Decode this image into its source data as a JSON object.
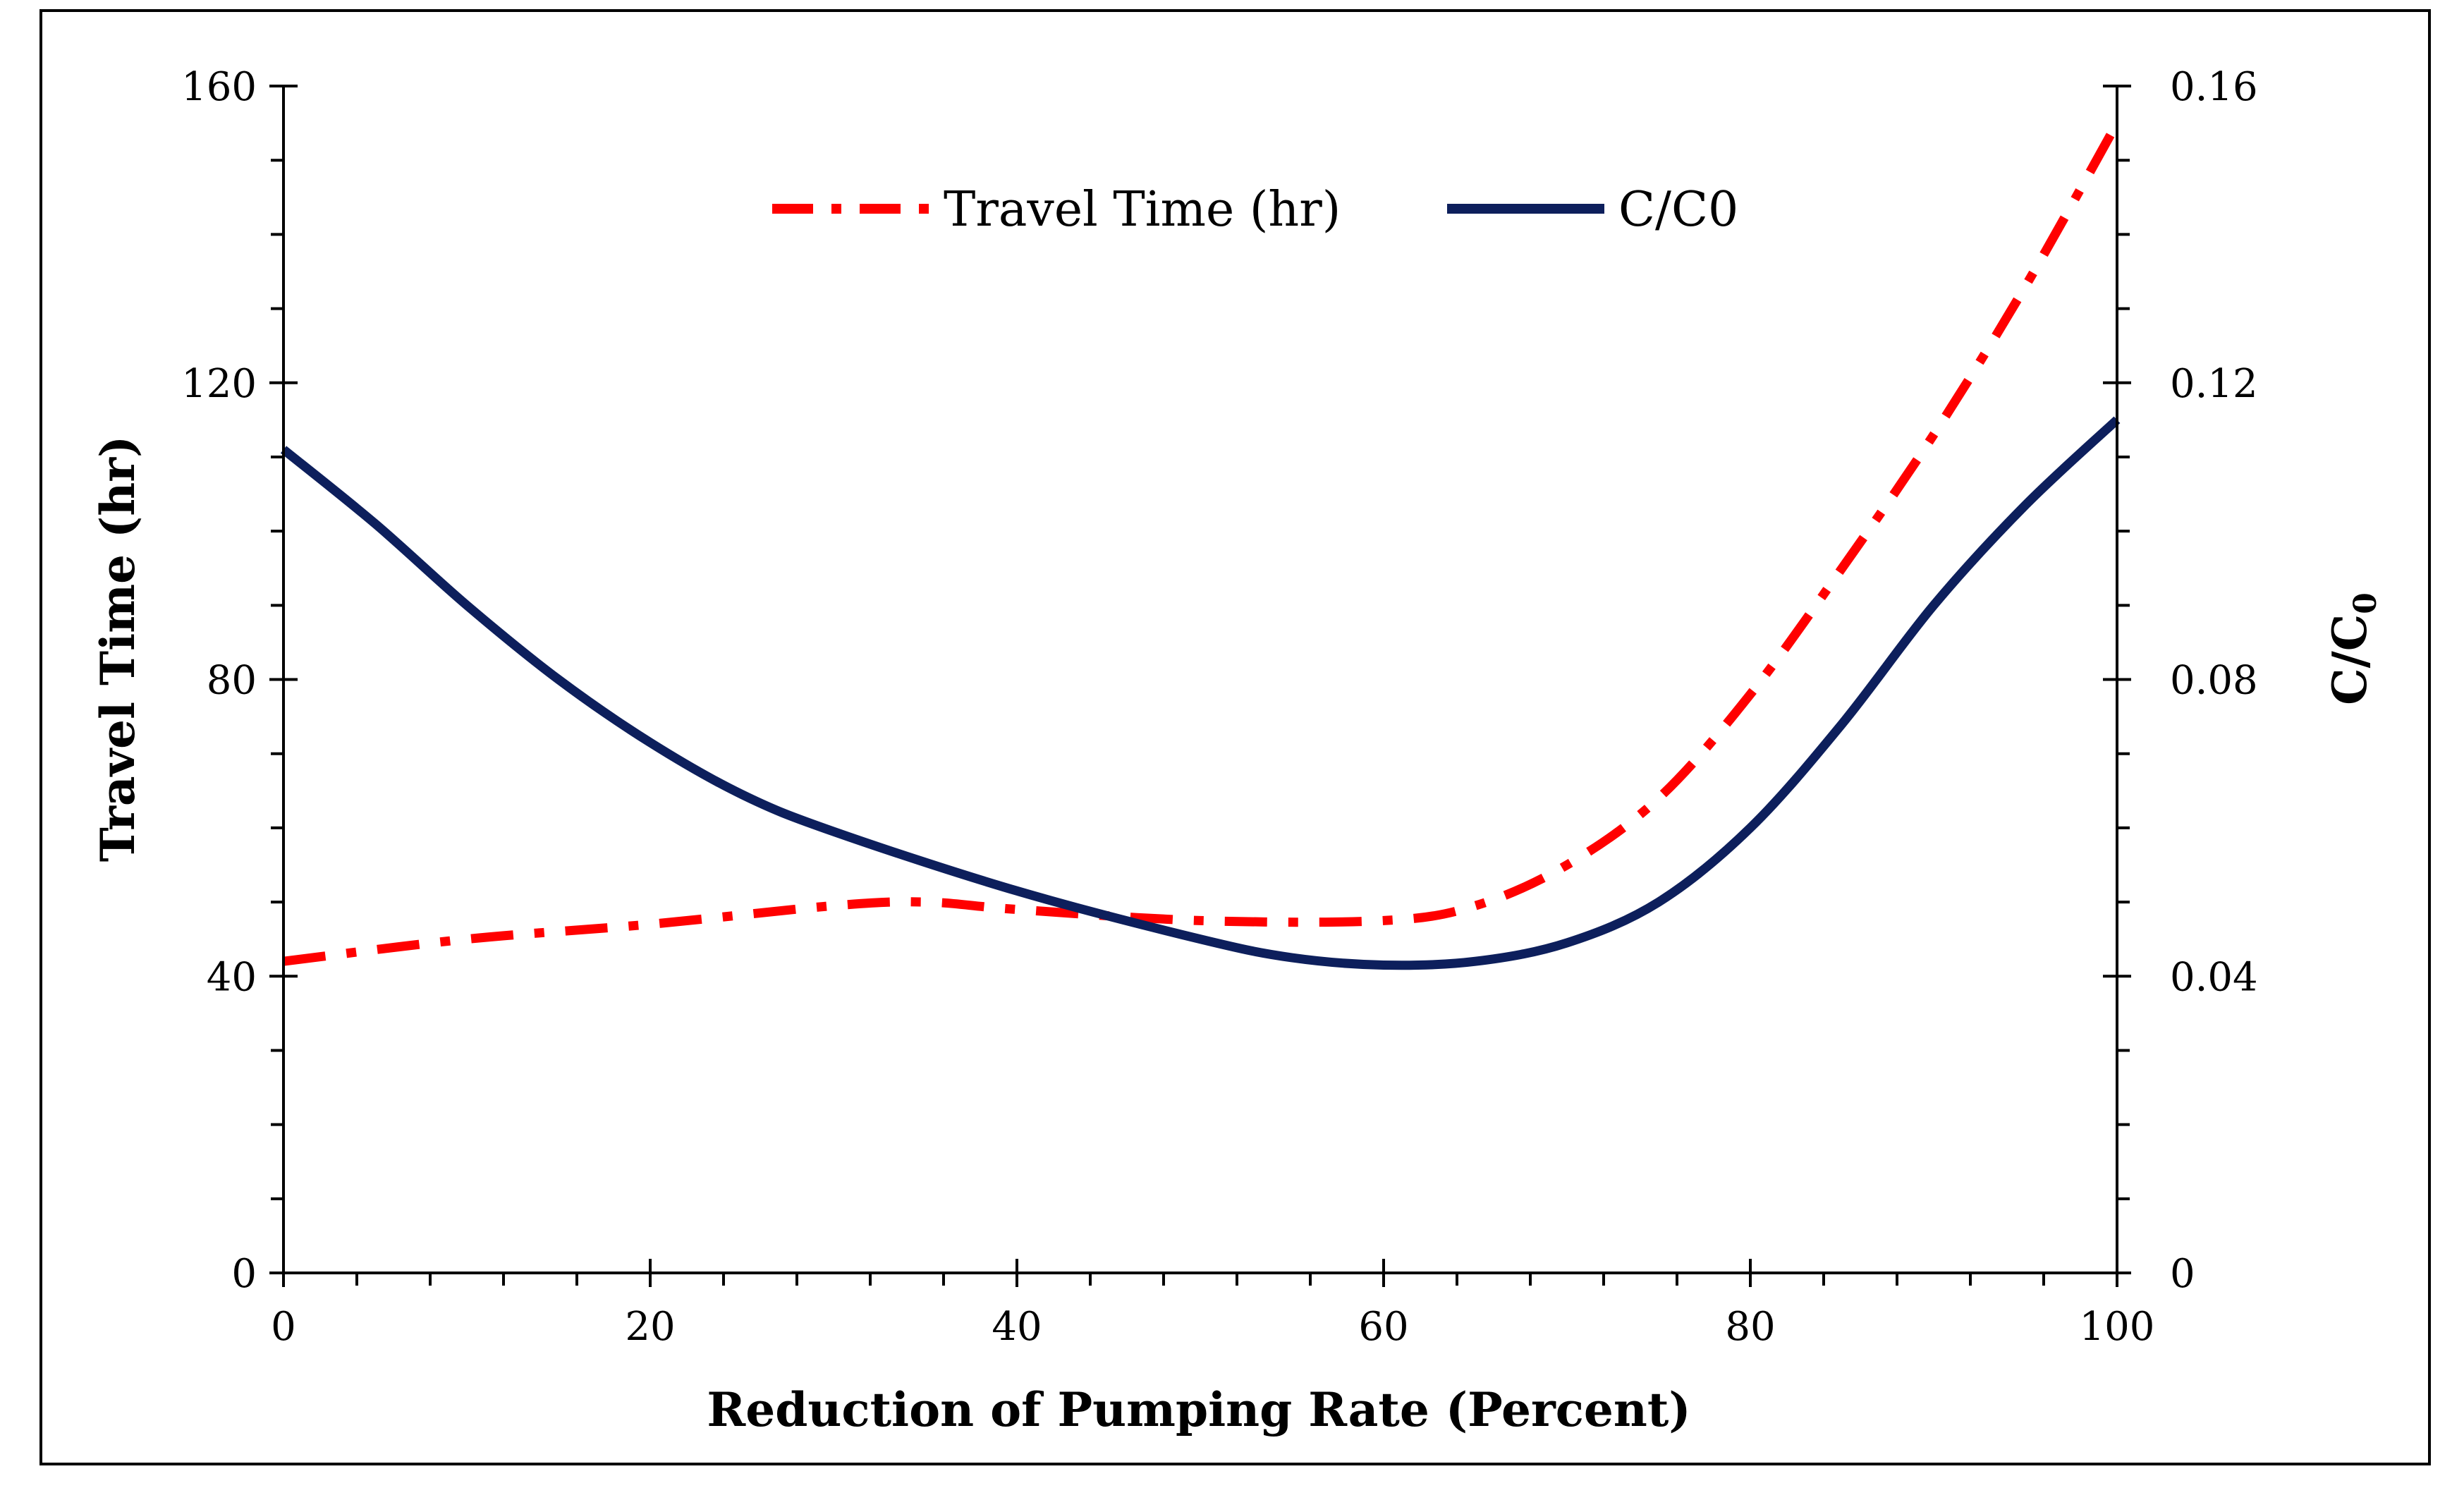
{
  "chart_data": {
    "type": "line",
    "title": "",
    "xlabel": "Reduction of Pumping Rate (Percent)",
    "ylabel_left": "Travel Time (hr)",
    "ylabel_right_base": "C/C",
    "ylabel_right_sub": "0",
    "xlim": [
      0,
      100
    ],
    "ylim_left": [
      0,
      160
    ],
    "ylim_right": [
      0,
      0.16
    ],
    "x_ticks": [
      "0",
      "20",
      "40",
      "60",
      "80",
      "100"
    ],
    "y_left_ticks": [
      "0",
      "40",
      "80",
      "120",
      "160"
    ],
    "y_right_ticks": [
      "0",
      "0.04",
      "0.08",
      "0.12",
      "0.16"
    ],
    "grid": false,
    "legend_position": "top-center",
    "series": [
      {
        "name": "Travel Time (hr)",
        "axis": "left",
        "color": "#FF0000",
        "style": "dash-dot",
        "points": [
          [
            0,
            42
          ],
          [
            10,
            45
          ],
          [
            20,
            47
          ],
          [
            30,
            49.5
          ],
          [
            35,
            50
          ],
          [
            40,
            49
          ],
          [
            50,
            47.5
          ],
          [
            60,
            47.5
          ],
          [
            65,
            49.5
          ],
          [
            70,
            55
          ],
          [
            75,
            64
          ],
          [
            80,
            78
          ],
          [
            85,
            95
          ],
          [
            90,
            113
          ],
          [
            95,
            133
          ],
          [
            100,
            155
          ]
        ]
      },
      {
        "name": "C/C0",
        "axis": "right",
        "color": "#0D1F5C",
        "style": "solid",
        "points": [
          [
            0,
            0.111
          ],
          [
            5,
            0.101
          ],
          [
            10,
            0.09
          ],
          [
            15,
            0.08
          ],
          [
            20,
            0.0715
          ],
          [
            25,
            0.0645
          ],
          [
            30,
            0.0595
          ],
          [
            40,
            0.0515
          ],
          [
            50,
            0.045
          ],
          [
            55,
            0.0425
          ],
          [
            60,
            0.0415
          ],
          [
            65,
            0.042
          ],
          [
            70,
            0.0445
          ],
          [
            75,
            0.05
          ],
          [
            80,
            0.06
          ],
          [
            85,
            0.074
          ],
          [
            90,
            0.09
          ],
          [
            95,
            0.1035
          ],
          [
            100,
            0.115
          ]
        ]
      }
    ]
  }
}
